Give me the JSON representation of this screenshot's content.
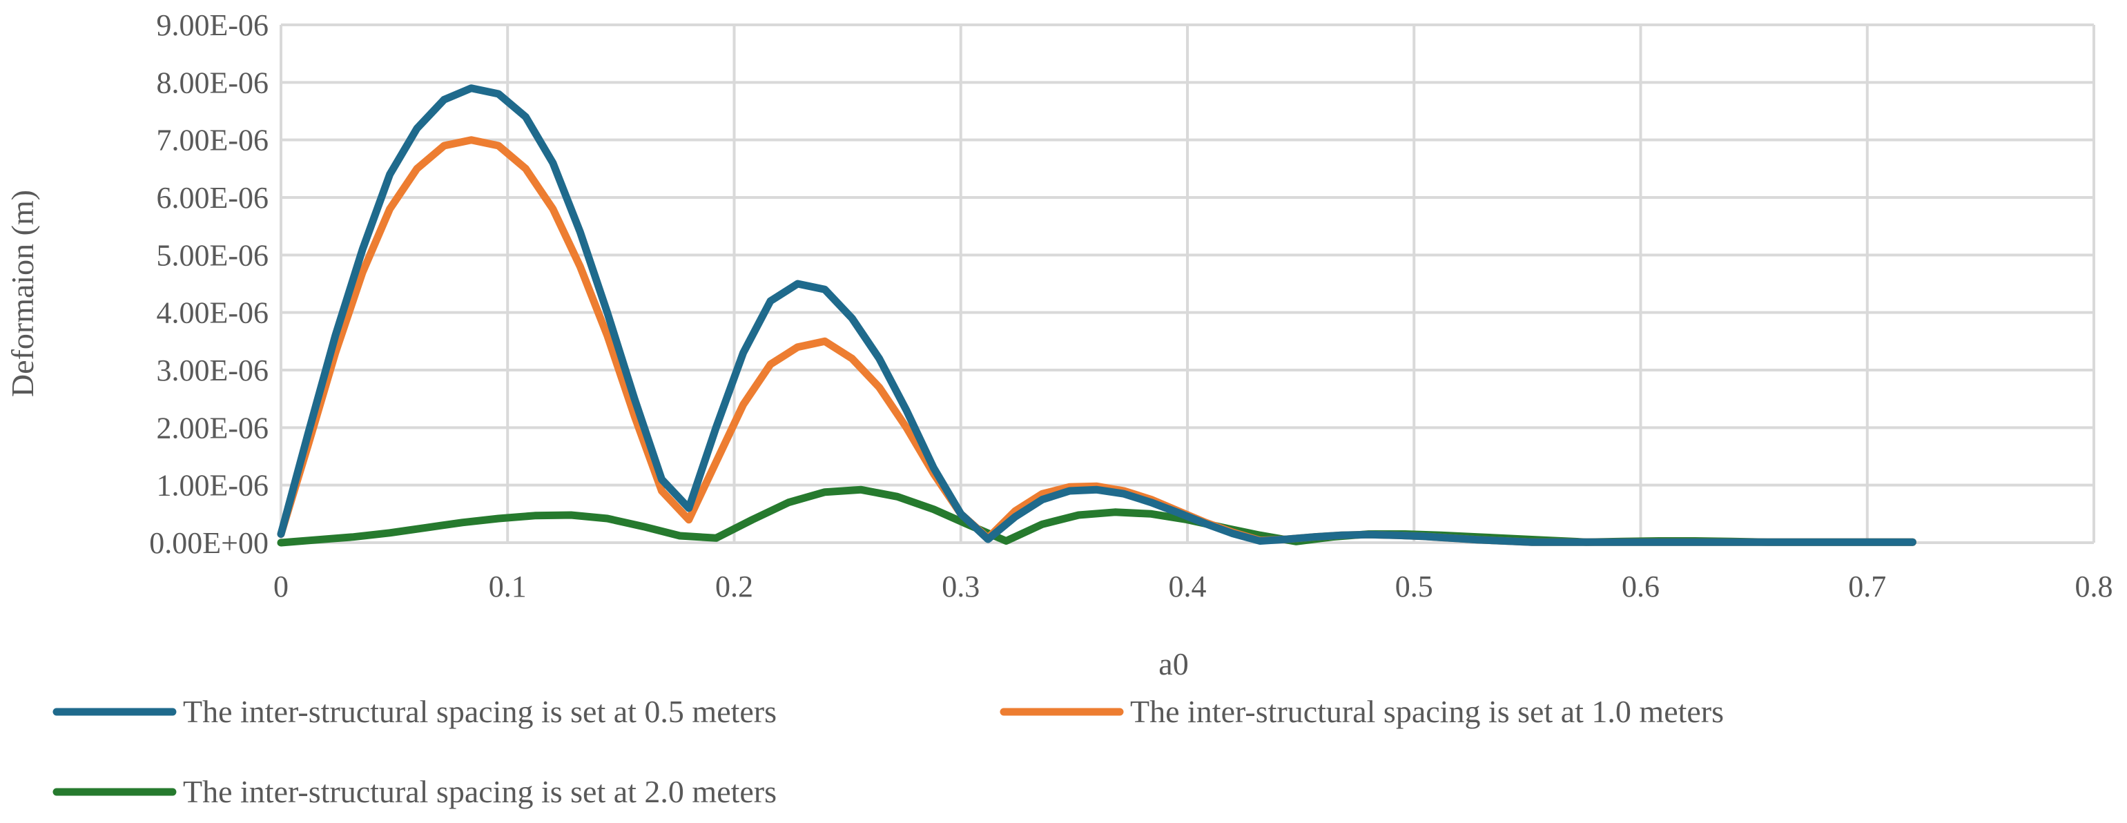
{
  "chart_data": {
    "type": "line",
    "title": "",
    "xlabel": "a0",
    "ylabel": "Deformaion (m)",
    "xlim": [
      0,
      0.8
    ],
    "ylim": [
      0,
      9e-06
    ],
    "x_ticks": [
      "0",
      "0.1",
      "0.2",
      "0.3",
      "0.4",
      "0.5",
      "0.6",
      "0.7",
      "0.8"
    ],
    "y_ticks": [
      "0.00E+00",
      "1.00E-06",
      "2.00E-06",
      "3.00E-06",
      "4.00E-06",
      "5.00E-06",
      "6.00E-06",
      "7.00E-06",
      "8.00E-06",
      "9.00E-06"
    ],
    "grid": true,
    "legend_position": "bottom",
    "series": [
      {
        "name": "The inter-structural spacing is set at 0.5 meters",
        "color": "#1F6A8C",
        "x": [
          0,
          0.012,
          0.024,
          0.036,
          0.048,
          0.06,
          0.072,
          0.084,
          0.096,
          0.108,
          0.12,
          0.132,
          0.144,
          0.156,
          0.168,
          0.18,
          0.192,
          0.204,
          0.216,
          0.228,
          0.24,
          0.252,
          0.264,
          0.276,
          0.288,
          0.3,
          0.312,
          0.324,
          0.336,
          0.348,
          0.36,
          0.372,
          0.384,
          0.396,
          0.408,
          0.42,
          0.432,
          0.444,
          0.456,
          0.468,
          0.48,
          0.492,
          0.504,
          0.516,
          0.528,
          0.54,
          0.552,
          0.564,
          0.576,
          0.588,
          0.6,
          0.612,
          0.624,
          0.636,
          0.648,
          0.66,
          0.672,
          0.684,
          0.696,
          0.708,
          0.72
        ],
        "y": [
          1.5e-07,
          1.9e-06,
          3.6e-06,
          5.1e-06,
          6.4e-06,
          7.2e-06,
          7.7e-06,
          7.9e-06,
          7.8e-06,
          7.4e-06,
          6.6e-06,
          5.4e-06,
          4e-06,
          2.5e-06,
          1.1e-06,
          6e-07,
          2e-06,
          3.3e-06,
          4.2e-06,
          4.5e-06,
          4.4e-06,
          3.9e-06,
          3.2e-06,
          2.3e-06,
          1.3e-06,
          5e-07,
          6e-08,
          4.5e-07,
          7.5e-07,
          9e-07,
          9.2e-07,
          8.5e-07,
          7e-07,
          5.2e-07,
          3.3e-07,
          1.6e-07,
          3e-08,
          6e-08,
          1e-07,
          1.3e-07,
          1.4e-07,
          1.3e-07,
          1.1e-07,
          8e-08,
          5e-08,
          3e-08,
          1e-08,
          1e-08,
          1e-08,
          1e-08,
          1e-08,
          1e-08,
          1e-08,
          1e-08,
          1e-08,
          1e-08,
          1e-08,
          1e-08,
          1e-08,
          1e-08,
          1e-08
        ]
      },
      {
        "name": "The inter-structural spacing is set at 1.0 meters",
        "color": "#ED7D31",
        "x": [
          0,
          0.012,
          0.024,
          0.036,
          0.048,
          0.06,
          0.072,
          0.084,
          0.096,
          0.108,
          0.12,
          0.132,
          0.144,
          0.156,
          0.168,
          0.18,
          0.192,
          0.204,
          0.216,
          0.228,
          0.24,
          0.252,
          0.264,
          0.276,
          0.288,
          0.3,
          0.312,
          0.324,
          0.336,
          0.348,
          0.36,
          0.372,
          0.384,
          0.396,
          0.408,
          0.42,
          0.432,
          0.444,
          0.456,
          0.468,
          0.48,
          0.492,
          0.504,
          0.516,
          0.528,
          0.54,
          0.552,
          0.564,
          0.576,
          0.588,
          0.6,
          0.612,
          0.624,
          0.636,
          0.648,
          0.66,
          0.672,
          0.684,
          0.696,
          0.708,
          0.72
        ],
        "y": [
          1.5e-07,
          1.7e-06,
          3.3e-06,
          4.7e-06,
          5.8e-06,
          6.5e-06,
          6.9e-06,
          7e-06,
          6.9e-06,
          6.5e-06,
          5.8e-06,
          4.8e-06,
          3.6e-06,
          2.2e-06,
          9e-07,
          4e-07,
          1.4e-06,
          2.4e-06,
          3.1e-06,
          3.4e-06,
          3.5e-06,
          3.2e-06,
          2.7e-06,
          2e-06,
          1.2e-06,
          5e-07,
          8e-08,
          5.5e-07,
          8.5e-07,
          9.7e-07,
          9.8e-07,
          9e-07,
          7.5e-07,
          5.5e-07,
          3.5e-07,
          1.8e-07,
          4e-08,
          6e-08,
          1e-07,
          1.3e-07,
          1.4e-07,
          1.3e-07,
          1.1e-07,
          8e-08,
          5e-08,
          3e-08,
          1e-08,
          1e-08,
          1e-08,
          1e-08,
          1e-08,
          1e-08,
          1e-08,
          1e-08,
          1e-08,
          1e-08,
          1e-08,
          1e-08,
          1e-08,
          1e-08,
          1e-08
        ]
      },
      {
        "name": "The inter-structural spacing is set at 2.0 meters",
        "color": "#267A2E",
        "x": [
          0,
          0.016,
          0.032,
          0.048,
          0.064,
          0.08,
          0.096,
          0.112,
          0.128,
          0.144,
          0.16,
          0.176,
          0.192,
          0.208,
          0.224,
          0.24,
          0.256,
          0.272,
          0.288,
          0.304,
          0.32,
          0.336,
          0.352,
          0.368,
          0.384,
          0.4,
          0.416,
          0.432,
          0.448,
          0.464,
          0.48,
          0.496,
          0.512,
          0.528,
          0.544,
          0.56,
          0.576,
          0.592,
          0.608,
          0.624,
          0.64,
          0.656,
          0.672,
          0.688,
          0.704,
          0.72
        ],
        "y": [
          0,
          5e-08,
          1e-07,
          1.7e-07,
          2.6e-07,
          3.5e-07,
          4.2e-07,
          4.7e-07,
          4.8e-07,
          4.2e-07,
          2.8e-07,
          1.2e-07,
          8e-08,
          4e-07,
          7e-07,
          8.8e-07,
          9.2e-07,
          8e-07,
          5.8e-07,
          3e-07,
          3e-08,
          3.2e-07,
          4.8e-07,
          5.3e-07,
          5e-07,
          4e-07,
          2.6e-07,
          1.3e-07,
          2e-08,
          1e-07,
          1.5e-07,
          1.5e-07,
          1.3e-07,
          1e-07,
          7e-08,
          4e-08,
          1e-08,
          2e-08,
          3e-08,
          3e-08,
          2e-08,
          1e-08,
          1e-08,
          1e-08,
          1e-08,
          1e-08
        ]
      }
    ]
  }
}
